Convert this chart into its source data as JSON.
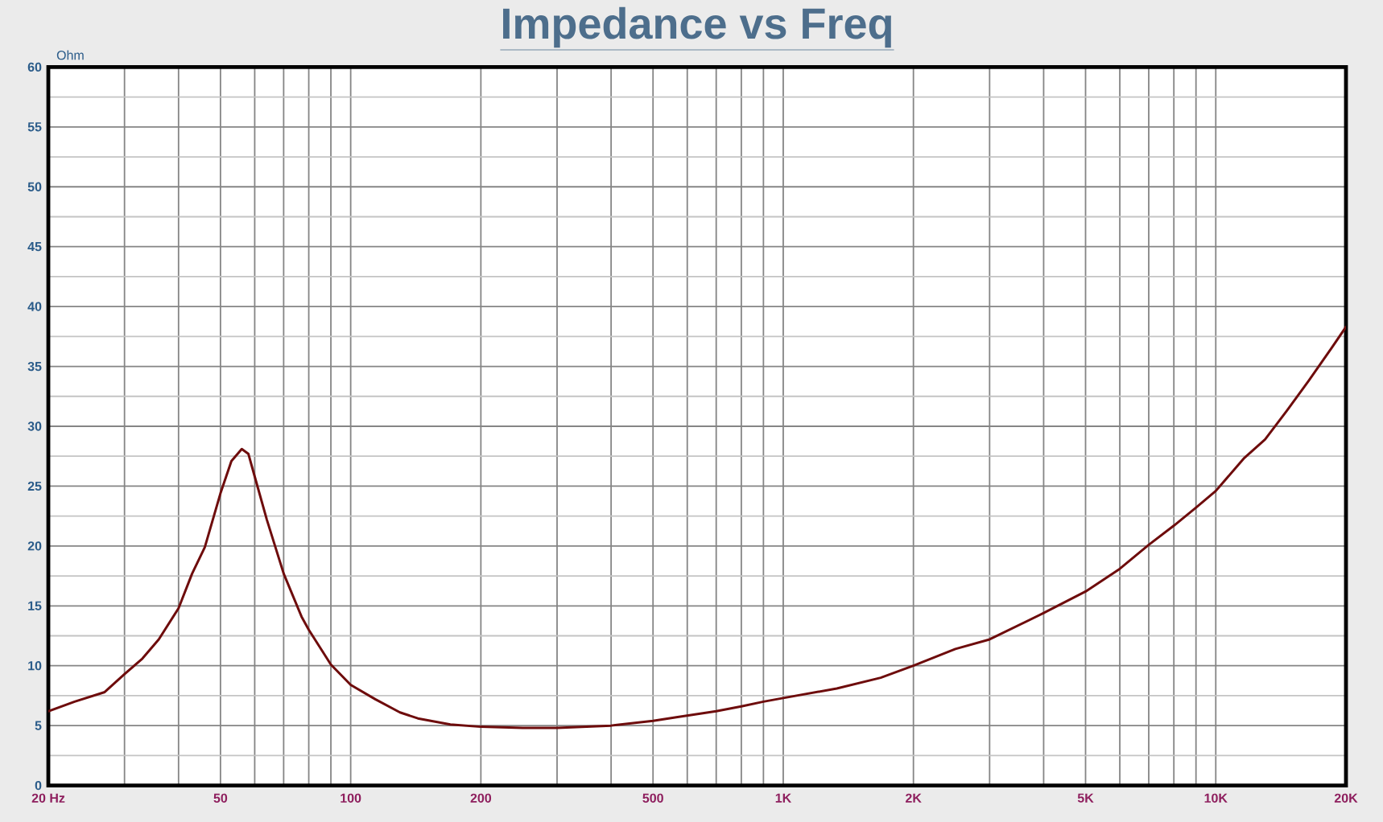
{
  "chart_data": {
    "type": "line",
    "title": "Impedance vs Freq",
    "ylabel": "Ohm",
    "x": [
      20,
      23,
      27,
      30,
      33,
      36,
      40,
      43,
      46,
      50,
      53,
      56,
      58,
      60,
      64,
      70,
      77,
      80,
      90,
      100,
      114,
      130,
      143,
      170,
      200,
      250,
      300,
      400,
      500,
      566,
      700,
      800,
      900,
      1000,
      1330,
      1680,
      2000,
      2500,
      3000,
      4000,
      5000,
      6000,
      7000,
      8000,
      9000,
      10000,
      11600,
      13000,
      14600,
      16400,
      18500,
      20000
    ],
    "series": [
      {
        "color": "#6e0c0c",
        "values": [
          6.2,
          7.0,
          7.8,
          9.3,
          10.6,
          12.2,
          14.8,
          17.7,
          19.9,
          24.4,
          27.1,
          28.1,
          27.7,
          25.8,
          22.2,
          17.7,
          14.1,
          13.0,
          10.1,
          8.4,
          7.2,
          6.1,
          5.6,
          5.1,
          4.9,
          4.8,
          4.8,
          5.0,
          5.4,
          5.7,
          6.2,
          6.6,
          7.0,
          7.3,
          8.1,
          9.0,
          10.0,
          11.4,
          12.2,
          14.4,
          16.2,
          18.1,
          20.1,
          21.7,
          23.2,
          24.6,
          27.3,
          28.9,
          31.3,
          33.8,
          36.5,
          38.3
        ]
      }
    ],
    "log": "x",
    "xlim": [
      20,
      20000
    ],
    "ylim": [
      0,
      60
    ],
    "xticks": [
      {
        "value": 20,
        "label": "20 Hz"
      },
      50,
      100,
      200,
      500,
      {
        "value": 1000,
        "label": "1K"
      },
      {
        "value": 2000,
        "label": "2K"
      },
      {
        "value": 5000,
        "label": "5K"
      },
      {
        "value": 10000,
        "label": "10K"
      },
      {
        "value": 20000,
        "label": "20K"
      }
    ],
    "yticks": [
      0,
      5,
      10,
      15,
      20,
      25,
      30,
      35,
      40,
      45,
      50,
      55,
      60
    ],
    "grid": true
  }
}
